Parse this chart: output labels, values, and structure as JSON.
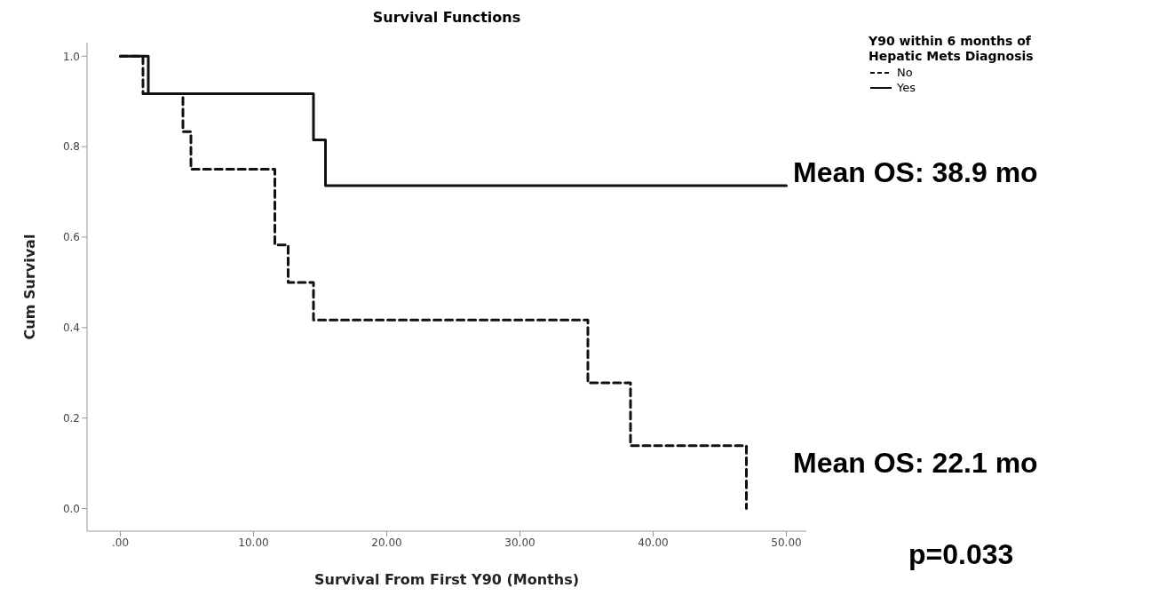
{
  "chart_data": {
    "type": "step",
    "title": "Survival Functions",
    "xlabel": "Survival From First Y90 (Months)",
    "ylabel": "Cum Survival",
    "legend_title": "Y90 within 6 months of Hepatic Mets Diagnosis",
    "legend": "top right",
    "xlim": [
      -2.5,
      51.5
    ],
    "ylim": [
      -0.05,
      1.03
    ],
    "xticks": [
      {
        "value": 0,
        "label": ".00"
      },
      {
        "value": 10,
        "label": "10.00"
      },
      {
        "value": 20,
        "label": "20.00"
      },
      {
        "value": 30,
        "label": "30.00"
      },
      {
        "value": 40,
        "label": "40.00"
      },
      {
        "value": 50,
        "label": "50.00"
      }
    ],
    "yticks": [
      {
        "value": 0,
        "label": "0.0"
      },
      0.2,
      0.4,
      0.6,
      0.8,
      {
        "value": 1,
        "label": "1.0"
      }
    ],
    "series": [
      {
        "name": "No",
        "color": "#111111",
        "line_style": "dashed",
        "x": [
          0,
          1.7,
          4.7,
          5.3,
          11.6,
          12.6,
          14.5,
          35.1,
          38.3,
          47.0
        ],
        "values": [
          1,
          0.917,
          0.833,
          0.75,
          0.583,
          0.5,
          0.417,
          0.278,
          0.139,
          0
        ]
      },
      {
        "name": "Yes",
        "color": "#111111",
        "line_style": "solid",
        "x": [
          0,
          2.1,
          14.5,
          15.4,
          50
        ],
        "values": [
          1,
          0.917,
          0.815,
          0.714,
          0.714
        ]
      }
    ],
    "annotations": [
      "Mean OS: 38.9 mo",
      "Mean OS: 22.1 mo",
      "p=0.033"
    ]
  }
}
